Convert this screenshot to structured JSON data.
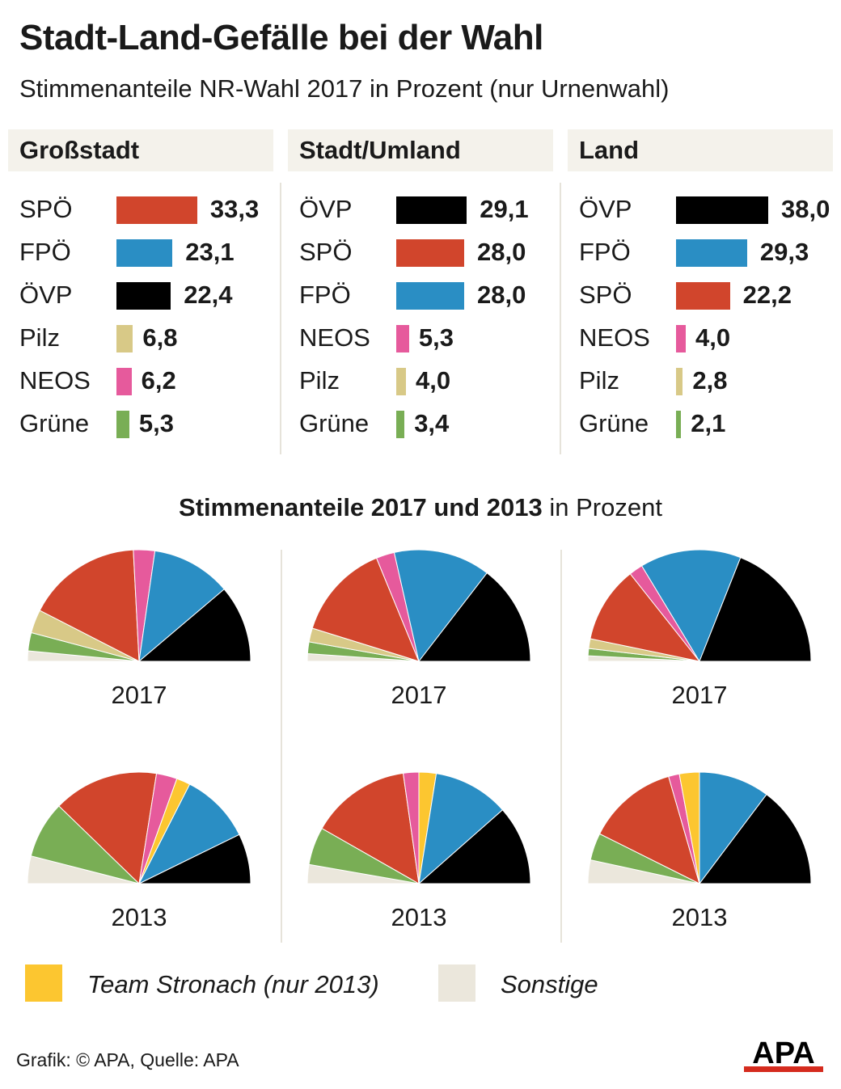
{
  "title": "Stadt-Land-Gefälle bei der Wahl",
  "subtitle": "Stimmenanteile NR-Wahl 2017 in Prozent (nur Urnenwahl)",
  "colors": {
    "SPÖ": "#d1452c",
    "FPÖ": "#2a8ec4",
    "ÖVP": "#000000",
    "Pilz": "#d8c987",
    "NEOS": "#e65a9c",
    "Grüne": "#79ae55",
    "Team Stronach": "#fcc630",
    "Sonstige": "#ebe7dc"
  },
  "chart_data": [
    {
      "type": "bar",
      "title": "Großstadt",
      "categories": [
        "SPÖ",
        "FPÖ",
        "ÖVP",
        "Pilz",
        "NEOS",
        "Grüne"
      ],
      "values": [
        33.3,
        23.1,
        22.4,
        6.8,
        6.2,
        5.3
      ],
      "labels": [
        "33,3",
        "23,1",
        "22,4",
        "6,8",
        "6,2",
        "5,3"
      ]
    },
    {
      "type": "bar",
      "title": "Stadt/Umland",
      "categories": [
        "ÖVP",
        "SPÖ",
        "FPÖ",
        "NEOS",
        "Pilz",
        "Grüne"
      ],
      "values": [
        29.1,
        28.0,
        28.0,
        5.3,
        4.0,
        3.4
      ],
      "labels": [
        "29,1",
        "28,0",
        "28,0",
        "5,3",
        "4,0",
        "3,4"
      ]
    },
    {
      "type": "bar",
      "title": "Land",
      "categories": [
        "ÖVP",
        "FPÖ",
        "SPÖ",
        "NEOS",
        "Pilz",
        "Grüne"
      ],
      "values": [
        38.0,
        29.3,
        22.2,
        4.0,
        2.8,
        2.1
      ],
      "labels": [
        "38,0",
        "29,3",
        "22,2",
        "4,0",
        "2,8",
        "2,1"
      ]
    },
    {
      "type": "pie",
      "title": "Stimmenanteile 2017 und 2013 in Prozent",
      "order": [
        "Sonstige",
        "Grüne",
        "Pilz",
        "SPÖ",
        "NEOS",
        "Team Stronach",
        "FPÖ",
        "ÖVP"
      ],
      "pies": [
        {
          "region": "Großstadt",
          "year": "2017",
          "values": {
            "Sonstige": 3.0,
            "Grüne": 5.3,
            "Pilz": 6.8,
            "SPÖ": 33.3,
            "NEOS": 6.2,
            "Team Stronach": 0,
            "FPÖ": 23.1,
            "ÖVP": 22.4
          }
        },
        {
          "region": "Stadt/Umland",
          "year": "2017",
          "values": {
            "Sonstige": 2.2,
            "Grüne": 3.4,
            "Pilz": 4.0,
            "SPÖ": 28.0,
            "NEOS": 5.3,
            "Team Stronach": 0,
            "FPÖ": 28.0,
            "ÖVP": 29.1
          }
        },
        {
          "region": "Land",
          "year": "2017",
          "values": {
            "Sonstige": 1.6,
            "Grüne": 2.1,
            "Pilz": 2.8,
            "SPÖ": 22.2,
            "NEOS": 4.0,
            "Team Stronach": 0,
            "FPÖ": 29.3,
            "ÖVP": 38.0
          }
        },
        {
          "region": "Großstadt",
          "year": "2013",
          "values": {
            "Sonstige": 8.0,
            "Grüne": 16.5,
            "Pilz": 0,
            "SPÖ": 30.5,
            "NEOS": 6.0,
            "Team Stronach": 4.0,
            "FPÖ": 20.5,
            "ÖVP": 14.5
          }
        },
        {
          "region": "Stadt/Umland",
          "year": "2013",
          "values": {
            "Sonstige": 5.5,
            "Grüne": 11.0,
            "Pilz": 0,
            "SPÖ": 29.0,
            "NEOS": 4.5,
            "Team Stronach": 5.0,
            "FPÖ": 22.0,
            "ÖVP": 23.0
          }
        },
        {
          "region": "Land",
          "year": "2013",
          "values": {
            "Sonstige": 6.5,
            "Grüne": 7.5,
            "Pilz": 0,
            "SPÖ": 25.0,
            "NEOS": 3.0,
            "Team Stronach": 5.5,
            "FPÖ": 19.5,
            "ÖVP": 28.0
          }
        }
      ]
    }
  ],
  "section2": {
    "title_bold": "Stimmenanteile 2017 und 2013",
    "title_rest": " in Prozent"
  },
  "legend": [
    {
      "name": "Team Stronach",
      "label": "Team Stronach (nur 2013)"
    },
    {
      "name": "Sonstige",
      "label": "Sonstige"
    }
  ],
  "footer": "Grafik: © APA, Quelle: APA",
  "logo": {
    "text": "APA"
  }
}
